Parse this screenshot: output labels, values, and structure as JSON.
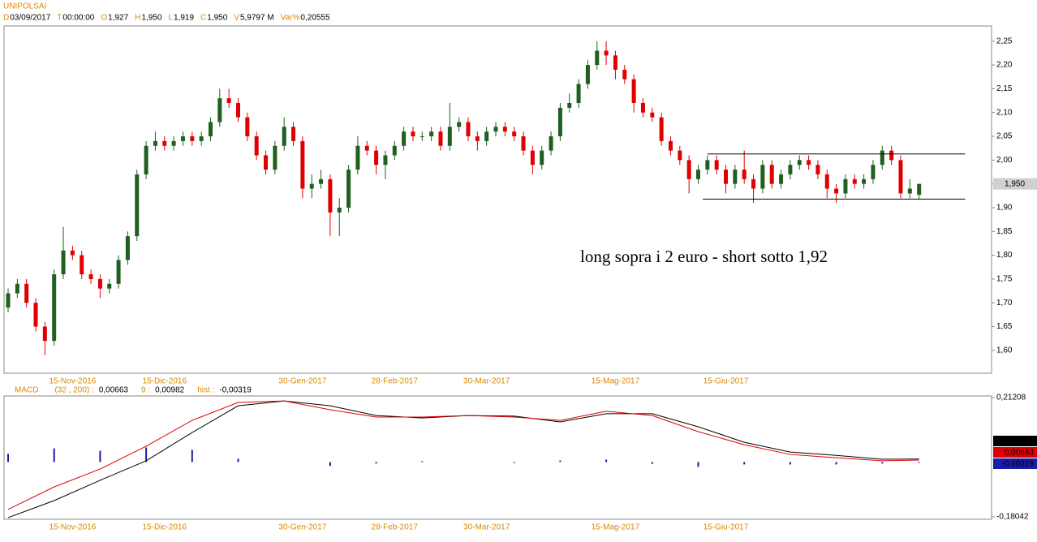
{
  "chart_data": {
    "type": "candlestick",
    "title": "UNIPOLSAI",
    "header": [
      {
        "key": "D",
        "value": "03/09/2017"
      },
      {
        "key": "T",
        "value": "00:00:00"
      },
      {
        "key": "O",
        "value": "1,927"
      },
      {
        "key": "H",
        "value": "1,950"
      },
      {
        "key": "L",
        "value": "1,919"
      },
      {
        "key": "C",
        "value": "1,950"
      },
      {
        "key": "V",
        "value": "5,9797 M"
      },
      {
        "key": "Var%",
        "value": "0,20555"
      }
    ],
    "open": [
      1.69,
      1.72,
      1.74,
      1.7,
      1.65,
      1.62,
      1.76,
      1.81,
      1.8,
      1.76,
      1.75,
      1.73,
      1.74,
      1.79,
      1.84,
      1.97,
      2.03,
      2.04,
      2.03,
      2.04,
      2.05,
      2.04,
      2.05,
      2.08,
      2.13,
      2.12,
      2.09,
      2.05,
      2.01,
      1.98,
      2.03,
      2.07,
      2.04,
      1.94,
      1.95,
      1.96,
      1.89,
      1.9,
      1.98,
      2.03,
      2.02,
      1.99,
      2.01,
      2.03,
      2.06,
      2.05,
      2.05,
      2.06,
      2.03,
      2.07,
      2.08,
      2.05,
      2.04,
      2.06,
      2.07,
      2.06,
      2.05,
      2.02,
      1.99,
      2.02,
      2.05,
      2.11,
      2.12,
      2.16,
      2.2,
      2.23,
      2.22,
      2.19,
      2.17,
      2.12,
      2.1,
      2.09,
      2.04,
      2.02,
      2.0,
      1.96,
      1.98,
      2.0,
      1.98,
      1.95,
      1.98,
      1.96,
      1.94,
      1.99,
      1.95,
      1.97,
      1.99,
      2.0,
      1.99,
      1.97,
      1.94,
      1.93,
      1.96,
      1.95,
      1.96,
      1.99,
      2.02,
      2.0,
      1.93,
      1.927
    ],
    "high": [
      1.73,
      1.75,
      1.75,
      1.71,
      1.66,
      1.77,
      1.86,
      1.82,
      1.81,
      1.77,
      1.76,
      1.75,
      1.8,
      1.85,
      1.98,
      2.04,
      2.06,
      2.05,
      2.05,
      2.06,
      2.06,
      2.06,
      2.09,
      2.15,
      2.15,
      2.13,
      2.1,
      2.06,
      2.02,
      2.04,
      2.09,
      2.08,
      2.05,
      1.97,
      1.98,
      1.97,
      1.92,
      1.99,
      2.05,
      2.04,
      2.03,
      2.02,
      2.04,
      2.07,
      2.07,
      2.06,
      2.07,
      2.07,
      2.12,
      2.09,
      2.09,
      2.06,
      2.07,
      2.08,
      2.08,
      2.07,
      2.06,
      2.03,
      2.03,
      2.06,
      2.12,
      2.14,
      2.17,
      2.21,
      2.25,
      2.25,
      2.23,
      2.2,
      2.18,
      2.13,
      2.11,
      2.1,
      2.05,
      2.03,
      2.01,
      1.99,
      2.01,
      2.01,
      1.99,
      1.99,
      2.02,
      1.97,
      2.0,
      2.0,
      1.98,
      2.0,
      2.01,
      2.01,
      2.0,
      1.98,
      1.95,
      1.97,
      1.97,
      1.97,
      2.0,
      2.03,
      2.03,
      2.01,
      1.96,
      1.95
    ],
    "low": [
      1.68,
      1.71,
      1.69,
      1.64,
      1.59,
      1.61,
      1.75,
      1.79,
      1.75,
      1.74,
      1.71,
      1.72,
      1.73,
      1.78,
      1.83,
      1.96,
      2.02,
      2.02,
      2.02,
      2.03,
      2.03,
      2.03,
      2.04,
      2.07,
      2.11,
      2.08,
      2.04,
      2.0,
      1.97,
      1.97,
      2.02,
      2.03,
      1.92,
      1.92,
      1.94,
      1.84,
      1.84,
      1.89,
      1.97,
      2.01,
      1.97,
      1.96,
      2.0,
      2.02,
      2.04,
      2.04,
      2.04,
      2.02,
      2.02,
      2.06,
      2.04,
      2.02,
      2.03,
      2.05,
      2.05,
      2.04,
      2.01,
      1.97,
      1.98,
      2.01,
      2.04,
      2.1,
      2.11,
      2.15,
      2.19,
      2.2,
      2.17,
      2.16,
      2.1,
      2.09,
      2.08,
      2.03,
      2.01,
      1.99,
      1.93,
      1.95,
      1.97,
      1.97,
      1.93,
      1.94,
      1.95,
      1.91,
      1.93,
      1.94,
      1.94,
      1.96,
      1.98,
      1.98,
      1.96,
      1.92,
      1.91,
      1.92,
      1.94,
      1.94,
      1.95,
      1.98,
      1.99,
      1.92,
      1.92,
      1.919
    ],
    "close": [
      1.72,
      1.74,
      1.7,
      1.65,
      1.62,
      1.76,
      1.81,
      1.8,
      1.76,
      1.75,
      1.73,
      1.74,
      1.79,
      1.84,
      1.97,
      2.03,
      2.04,
      2.03,
      2.04,
      2.05,
      2.04,
      2.05,
      2.08,
      2.13,
      2.12,
      2.09,
      2.05,
      2.01,
      1.98,
      2.03,
      2.07,
      2.04,
      1.94,
      1.95,
      1.96,
      1.89,
      1.9,
      1.98,
      2.03,
      2.02,
      1.99,
      2.01,
      2.03,
      2.06,
      2.05,
      2.05,
      2.06,
      2.03,
      2.07,
      2.08,
      2.05,
      2.04,
      2.06,
      2.07,
      2.06,
      2.05,
      2.02,
      1.99,
      2.02,
      2.05,
      2.11,
      2.12,
      2.16,
      2.2,
      2.23,
      2.22,
      2.19,
      2.17,
      2.12,
      2.1,
      2.09,
      2.04,
      2.02,
      2.0,
      1.96,
      1.98,
      2.0,
      1.98,
      1.95,
      1.98,
      1.96,
      1.94,
      1.99,
      1.95,
      1.97,
      1.99,
      2.0,
      1.99,
      1.97,
      1.94,
      1.93,
      1.96,
      1.95,
      1.96,
      1.99,
      2.02,
      2.0,
      1.93,
      1.94,
      1.95
    ],
    "up_color": "#1f5f1f",
    "down_color": "#e00000",
    "ylim": [
      1.552,
      2.282
    ],
    "yticks": [
      {
        "value": 1.6,
        "label": "1,60"
      },
      {
        "value": 1.65,
        "label": "1,65"
      },
      {
        "value": 1.7,
        "label": "1,70"
      },
      {
        "value": 1.75,
        "label": "1,75"
      },
      {
        "value": 1.8,
        "label": "1,80"
      },
      {
        "value": 1.85,
        "label": "1,85"
      },
      {
        "value": 1.9,
        "label": "1,90"
      },
      {
        "value": 1.95,
        "label": "1,95"
      },
      {
        "value": 2.0,
        "label": "2,00"
      },
      {
        "value": 2.05,
        "label": "2,05"
      },
      {
        "value": 2.1,
        "label": "2,10"
      },
      {
        "value": 2.15,
        "label": "2,15"
      },
      {
        "value": 2.2,
        "label": "2,20"
      },
      {
        "value": 2.25,
        "label": "2,25"
      }
    ],
    "xticks": [
      {
        "value": 7,
        "label": "15-Nov-2016"
      },
      {
        "value": 17,
        "label": "15-Dic-2016"
      },
      {
        "value": 32,
        "label": "30-Gen-2017"
      },
      {
        "value": 42,
        "label": "28-Feb-2017"
      },
      {
        "value": 52,
        "label": "30-Mar-2017"
      },
      {
        "value": 66,
        "label": "15-Mag-2017"
      },
      {
        "value": 78,
        "label": "15-Giu-2017"
      }
    ],
    "current": {
      "value": 1.95,
      "label": "1,950"
    },
    "levels": [
      {
        "value": 2.013,
        "start": 76,
        "end": 104
      },
      {
        "value": 1.918,
        "start": 75.5,
        "end": 104
      }
    ],
    "annotation": "long sopra i 2 euro - short sotto 1,92",
    "macd": {
      "indicator": "MACD",
      "x": [
        0,
        5,
        10,
        15,
        20,
        25,
        30,
        35,
        40,
        45,
        50,
        55,
        60,
        65,
        70,
        75,
        80,
        85,
        90,
        95,
        99
      ],
      "ylim": [
        -0.18042,
        0.21208
      ],
      "yticks": [
        {
          "value": 0.21208,
          "label": "0,21208"
        },
        {
          "value": -0.18042,
          "label": "-0,18042"
        }
      ],
      "series": [
        {
          "name": "(32 , 200) :",
          "color": "#e00000",
          "values": [
            -0.156,
            -0.082,
            -0.023,
            0.052,
            0.137,
            0.196,
            0.201,
            0.172,
            0.148,
            0.148,
            0.153,
            0.148,
            0.137,
            0.167,
            0.153,
            0.1,
            0.057,
            0.025,
            0.014,
            0.004,
            0.00663
          ],
          "current_label": "0,00663"
        },
        {
          "name": "9 :",
          "color": "#000000",
          "values": [
            -0.183,
            -0.127,
            -0.06,
            0.004,
            0.097,
            0.185,
            0.201,
            0.185,
            0.153,
            0.145,
            0.153,
            0.151,
            0.132,
            0.159,
            0.159,
            0.116,
            0.065,
            0.033,
            0.022,
            0.009,
            0.00982
          ],
          "current_label": "0,00982"
        },
        {
          "name": "hist :",
          "color": "#1a1aa8",
          "values": [
            0.027,
            0.045,
            0.037,
            0.048,
            0.04,
            0.011,
            0,
            -0.013,
            -0.005,
            0.003,
            0,
            -0.003,
            0.005,
            0.008,
            -0.006,
            -0.016,
            -0.008,
            -0.008,
            -0.008,
            -0.005,
            -0.00319
          ],
          "current_label": "-0,00319"
        }
      ]
    }
  }
}
